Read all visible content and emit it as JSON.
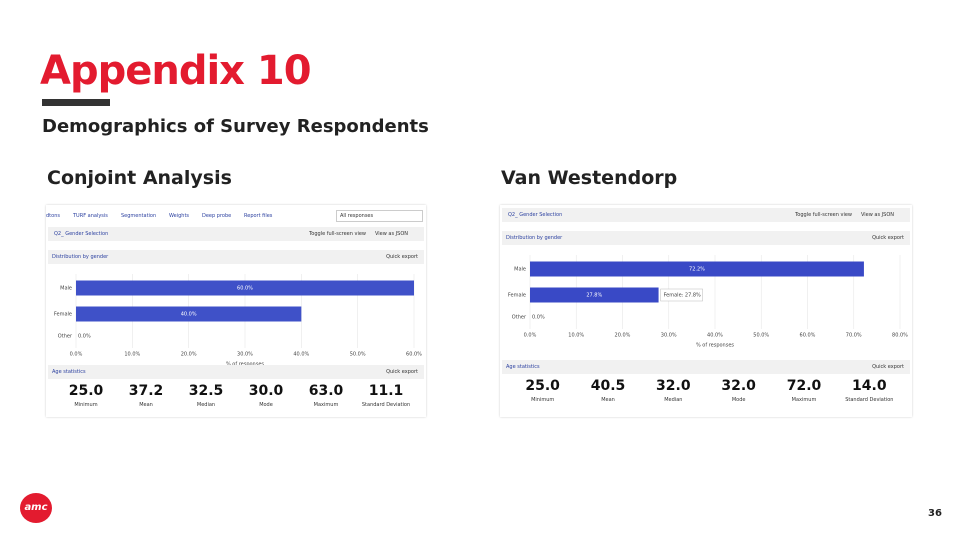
{
  "header": {
    "title": "Appendix 10",
    "subtitle": "Demographics of Survey Respondents"
  },
  "panels": [
    {
      "heading": "Conjoint Analysis",
      "tabs": [
        "dtons",
        "TURF analysis",
        "Segmentation",
        "Weights",
        "Deep probe",
        "Report files"
      ],
      "dropdown": "All responses",
      "question": "Q2_ Gender Selection",
      "toggle": "Toggle full-screen view",
      "json": "View as JSON",
      "dist_title": "Distribution by gender",
      "export": "Quick export",
      "chart": {
        "type": "bar",
        "categories": [
          "Male",
          "Female",
          "Other"
        ],
        "values": [
          60,
          40,
          0
        ],
        "value_labels": [
          "60.0%",
          "40.0%",
          "0.0%"
        ],
        "color": "#3f51c8",
        "xlim": [
          0,
          60
        ],
        "xticks": [
          {
            "value": 0,
            "label": "0.0%"
          },
          {
            "value": 10,
            "label": "10.0%"
          },
          {
            "value": 20,
            "label": "20.0%"
          },
          {
            "value": 30,
            "label": "30.0%"
          },
          {
            "value": 40,
            "label": "40.0%"
          },
          {
            "value": 50,
            "label": "50.0%"
          },
          {
            "value": 60,
            "label": "60.0%"
          }
        ],
        "xlabel": "% of responses"
      },
      "age_title": "Age statistics",
      "age_export": "Quick export",
      "stats": [
        {
          "value": "25.0",
          "label": "Minimum"
        },
        {
          "value": "37.2",
          "label": "Mean"
        },
        {
          "value": "32.5",
          "label": "Median"
        },
        {
          "value": "30.0",
          "label": "Mode"
        },
        {
          "value": "63.0",
          "label": "Maximum"
        },
        {
          "value": "11.1",
          "label": "Standard Deviation"
        }
      ]
    },
    {
      "heading": "Van Westendorp",
      "question": "Q2_ Gender Selection",
      "toggle": "Toggle full-screen view",
      "json": "View as JSON",
      "dist_title": "Distribution by gender",
      "export": "Quick export",
      "chart": {
        "type": "bar",
        "categories": [
          "Male",
          "Female",
          "Other"
        ],
        "values": [
          72.2,
          27.8,
          0
        ],
        "value_labels": [
          "72.2%",
          "27.8%",
          "0.0%"
        ],
        "color": "#3949c6",
        "xlim": [
          0,
          80
        ],
        "xticks": [
          {
            "value": 0,
            "label": "0.0%"
          },
          {
            "value": 10,
            "label": "10.0%"
          },
          {
            "value": 20,
            "label": "20.0%"
          },
          {
            "value": 30,
            "label": "30.0%"
          },
          {
            "value": 40,
            "label": "40.0%"
          },
          {
            "value": 50,
            "label": "50.0%"
          },
          {
            "value": 60,
            "label": "60.0%"
          },
          {
            "value": 70,
            "label": "70.0%"
          },
          {
            "value": 80,
            "label": "80.0%"
          }
        ],
        "xlabel": "% of responses",
        "tooltip": "Female: 27.8%"
      },
      "age_title": "Age statistics",
      "age_export": "Quick export",
      "stats": [
        {
          "value": "25.0",
          "label": "Minimum"
        },
        {
          "value": "40.5",
          "label": "Mean"
        },
        {
          "value": "32.0",
          "label": "Median"
        },
        {
          "value": "32.0",
          "label": "Mode"
        },
        {
          "value": "72.0",
          "label": "Maximum"
        },
        {
          "value": "14.0",
          "label": "Standard Deviation"
        }
      ]
    }
  ],
  "logo": "amc",
  "page_number": "36"
}
